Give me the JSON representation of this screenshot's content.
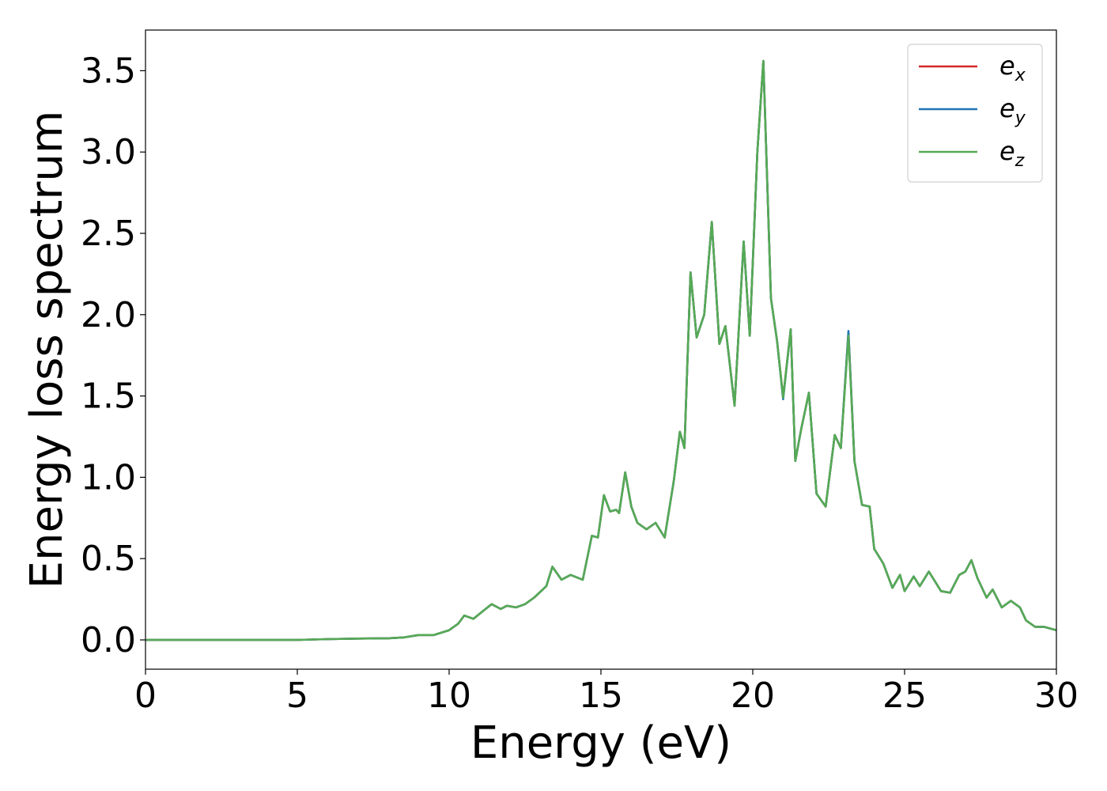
{
  "chart_data": {
    "type": "line",
    "title": "",
    "xlabel": "Energy (eV)",
    "ylabel": "Energy loss spectrum",
    "xlim": [
      0,
      30
    ],
    "ylim": [
      -0.18,
      3.75
    ],
    "xticks": [
      0,
      5,
      10,
      15,
      20,
      25,
      30
    ],
    "xtick_labels": [
      "0",
      "5",
      "10",
      "15",
      "20",
      "25",
      "30"
    ],
    "yticks": [
      0.0,
      0.5,
      1.0,
      1.5,
      2.0,
      2.5,
      3.0,
      3.5
    ],
    "ytick_labels": [
      "0.0",
      "0.5",
      "1.0",
      "1.5",
      "2.0",
      "2.5",
      "3.0",
      "3.5"
    ],
    "grid": false,
    "legend_position": "top-right",
    "x": [
      0,
      1,
      2,
      3,
      4,
      5,
      6,
      7,
      8,
      8.5,
      9,
      9.5,
      10,
      10.3,
      10.5,
      10.8,
      11.2,
      11.4,
      11.7,
      11.9,
      12.2,
      12.5,
      12.8,
      13.2,
      13.4,
      13.7,
      14.0,
      14.4,
      14.7,
      14.9,
      15.1,
      15.3,
      15.5,
      15.6,
      15.8,
      16.0,
      16.2,
      16.5,
      16.8,
      17.1,
      17.4,
      17.6,
      17.75,
      17.95,
      18.15,
      18.4,
      18.65,
      18.9,
      19.1,
      19.4,
      19.7,
      19.9,
      20.15,
      20.35,
      20.6,
      20.8,
      21.0,
      21.25,
      21.4,
      21.6,
      21.85,
      22.1,
      22.4,
      22.7,
      22.9,
      23.15,
      23.35,
      23.6,
      23.85,
      24.0,
      24.3,
      24.6,
      24.85,
      25.0,
      25.3,
      25.5,
      25.8,
      26.2,
      26.5,
      26.8,
      27.0,
      27.2,
      27.4,
      27.7,
      27.9,
      28.2,
      28.5,
      28.8,
      29.0,
      29.3,
      29.6,
      30.0
    ],
    "series": [
      {
        "name": "e_x",
        "color": "#d62728",
        "values": [
          0,
          0,
          0,
          0,
          0,
          0,
          0.005,
          0.008,
          0.01,
          0.015,
          0.03,
          0.03,
          0.06,
          0.1,
          0.15,
          0.13,
          0.19,
          0.22,
          0.19,
          0.21,
          0.2,
          0.22,
          0.26,
          0.33,
          0.45,
          0.37,
          0.4,
          0.37,
          0.64,
          0.63,
          0.89,
          0.79,
          0.8,
          0.78,
          1.03,
          0.82,
          0.72,
          0.68,
          0.72,
          0.63,
          0.98,
          1.28,
          1.18,
          2.26,
          1.86,
          2.0,
          2.57,
          1.82,
          1.93,
          1.44,
          2.45,
          1.87,
          3.0,
          3.56,
          2.1,
          1.84,
          1.49,
          1.91,
          1.1,
          1.3,
          1.52,
          0.9,
          0.82,
          1.26,
          1.18,
          1.89,
          1.1,
          0.83,
          0.82,
          0.56,
          0.47,
          0.32,
          0.4,
          0.3,
          0.39,
          0.33,
          0.42,
          0.3,
          0.29,
          0.4,
          0.42,
          0.49,
          0.38,
          0.26,
          0.31,
          0.2,
          0.24,
          0.2,
          0.12,
          0.08,
          0.08,
          0.06
        ]
      },
      {
        "name": "e_y",
        "color": "#1f77b4",
        "values": [
          0,
          0,
          0,
          0,
          0,
          0,
          0.005,
          0.008,
          0.01,
          0.015,
          0.03,
          0.03,
          0.06,
          0.1,
          0.15,
          0.13,
          0.19,
          0.22,
          0.19,
          0.21,
          0.2,
          0.22,
          0.26,
          0.33,
          0.45,
          0.37,
          0.4,
          0.37,
          0.64,
          0.63,
          0.89,
          0.79,
          0.8,
          0.78,
          1.03,
          0.82,
          0.72,
          0.68,
          0.72,
          0.63,
          0.98,
          1.28,
          1.18,
          2.26,
          1.86,
          2.0,
          2.57,
          1.82,
          1.93,
          1.44,
          2.45,
          1.87,
          3.0,
          3.56,
          2.1,
          1.84,
          1.48,
          1.91,
          1.1,
          1.3,
          1.52,
          0.9,
          0.82,
          1.26,
          1.18,
          1.9,
          1.1,
          0.83,
          0.82,
          0.56,
          0.47,
          0.32,
          0.4,
          0.3,
          0.39,
          0.33,
          0.42,
          0.3,
          0.29,
          0.4,
          0.42,
          0.49,
          0.38,
          0.26,
          0.31,
          0.2,
          0.24,
          0.2,
          0.12,
          0.08,
          0.08,
          0.06
        ]
      },
      {
        "name": "e_z",
        "color": "#55aa55",
        "values": [
          0,
          0,
          0,
          0,
          0,
          0,
          0.005,
          0.008,
          0.01,
          0.015,
          0.03,
          0.03,
          0.06,
          0.1,
          0.15,
          0.13,
          0.19,
          0.22,
          0.19,
          0.21,
          0.2,
          0.22,
          0.26,
          0.33,
          0.45,
          0.37,
          0.4,
          0.37,
          0.64,
          0.63,
          0.89,
          0.79,
          0.8,
          0.78,
          1.03,
          0.82,
          0.72,
          0.68,
          0.72,
          0.63,
          0.98,
          1.28,
          1.18,
          2.26,
          1.86,
          2.0,
          2.57,
          1.82,
          1.93,
          1.44,
          2.45,
          1.87,
          3.0,
          3.56,
          2.1,
          1.84,
          1.49,
          1.91,
          1.1,
          1.3,
          1.52,
          0.9,
          0.82,
          1.26,
          1.18,
          1.87,
          1.1,
          0.83,
          0.82,
          0.56,
          0.47,
          0.32,
          0.4,
          0.3,
          0.39,
          0.33,
          0.42,
          0.3,
          0.29,
          0.4,
          0.42,
          0.49,
          0.38,
          0.26,
          0.31,
          0.2,
          0.24,
          0.2,
          0.12,
          0.08,
          0.08,
          0.06
        ]
      }
    ],
    "legend": [
      {
        "base": "e",
        "sub": "x",
        "color": "#d62728"
      },
      {
        "base": "e",
        "sub": "y",
        "color": "#1f77b4"
      },
      {
        "base": "e",
        "sub": "z",
        "color": "#55aa55"
      }
    ]
  }
}
